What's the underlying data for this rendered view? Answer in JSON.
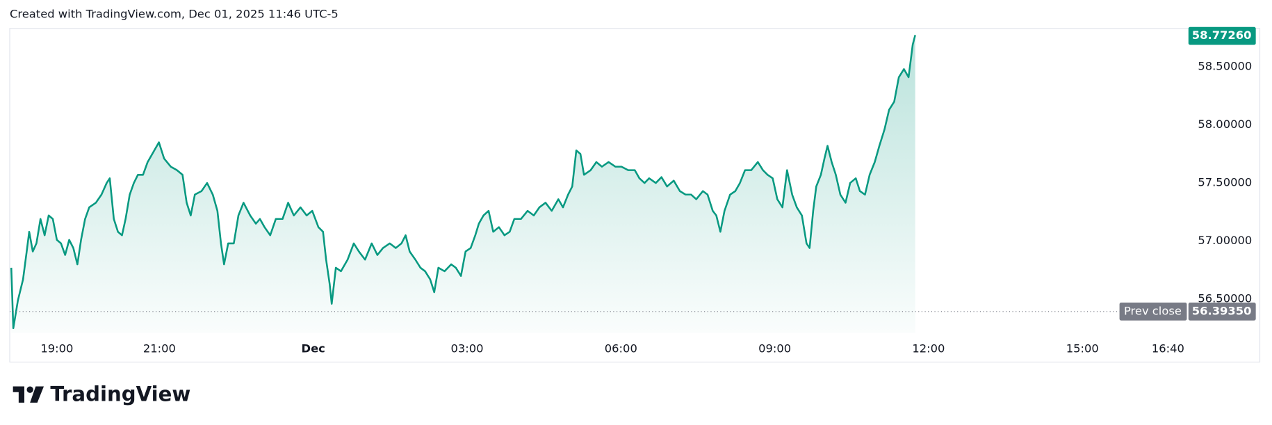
{
  "header": {
    "created": "Created with TradingView.com, Dec 01, 2025 11:46 UTC-5"
  },
  "footer": {
    "brand": "TradingView"
  },
  "chart_data": {
    "type": "area",
    "color": "#089981",
    "x": [
      0.11,
      0.15,
      0.24,
      0.34,
      0.41,
      0.46,
      0.53,
      0.6,
      0.68,
      0.76,
      0.84,
      0.92,
      1.0,
      1.08,
      1.16,
      1.24,
      1.32,
      1.4,
      1.47,
      1.55,
      1.63,
      1.76,
      1.87,
      1.97,
      2.03,
      2.11,
      2.19,
      2.27,
      2.34,
      2.42,
      2.5,
      2.58,
      2.68,
      2.77,
      2.9,
      2.99,
      3.09,
      3.22,
      3.34,
      3.45,
      3.53,
      3.61,
      3.69,
      3.82,
      3.93,
      4.04,
      4.13,
      4.2,
      4.26,
      4.34,
      4.45,
      4.54,
      4.64,
      4.77,
      4.88,
      4.96,
      5.05,
      5.16,
      5.27,
      5.4,
      5.51,
      5.62,
      5.75,
      5.87,
      5.98,
      6.1,
      6.19,
      6.25,
      6.32,
      6.36,
      6.44,
      6.54,
      6.67,
      6.79,
      6.89,
      7.01,
      7.14,
      7.25,
      7.36,
      7.49,
      7.61,
      7.72,
      7.8,
      7.88,
      7.99,
      8.09,
      8.18,
      8.28,
      8.36,
      8.44,
      8.56,
      8.69,
      8.78,
      8.88,
      8.97,
      9.07,
      9.16,
      9.23,
      9.32,
      9.42,
      9.51,
      9.62,
      9.73,
      9.83,
      9.92,
      10.05,
      10.18,
      10.3,
      10.41,
      10.53,
      10.65,
      10.78,
      10.87,
      10.97,
      11.05,
      11.13,
      11.21,
      11.28,
      11.41,
      11.52,
      11.63,
      11.76,
      11.89,
      12.01,
      12.14,
      12.27,
      12.36,
      12.46,
      12.55,
      12.68,
      12.79,
      12.9,
      13.03,
      13.15,
      13.26,
      13.37,
      13.47,
      13.6,
      13.69,
      13.79,
      13.86,
      13.94,
      14.02,
      14.13,
      14.23,
      14.32,
      14.42,
      14.54,
      14.67,
      14.77,
      14.86,
      14.96,
      15.05,
      15.15,
      15.24,
      15.34,
      15.43,
      15.53,
      15.62,
      15.68,
      15.75,
      15.81,
      15.9,
      15.97,
      16.03,
      16.11,
      16.19,
      16.28,
      16.38,
      16.47,
      16.58,
      16.66,
      16.76,
      16.85,
      16.95,
      17.04,
      17.14,
      17.23,
      17.33,
      17.42,
      17.52,
      17.61,
      17.69,
      17.74
    ],
    "values": [
      56.77,
      56.25,
      56.49,
      56.67,
      56.91,
      57.08,
      56.91,
      56.98,
      57.19,
      57.05,
      57.22,
      57.19,
      57.01,
      56.98,
      56.88,
      57.01,
      56.94,
      56.8,
      57.01,
      57.19,
      57.29,
      57.33,
      57.4,
      57.5,
      57.54,
      57.19,
      57.08,
      57.05,
      57.19,
      57.4,
      57.5,
      57.57,
      57.57,
      57.68,
      57.78,
      57.85,
      57.71,
      57.64,
      57.61,
      57.57,
      57.33,
      57.22,
      57.4,
      57.43,
      57.5,
      57.4,
      57.26,
      56.98,
      56.8,
      56.98,
      56.98,
      57.22,
      57.33,
      57.22,
      57.15,
      57.19,
      57.12,
      57.05,
      57.19,
      57.19,
      57.33,
      57.22,
      57.29,
      57.22,
      57.26,
      57.12,
      57.08,
      56.84,
      56.63,
      56.46,
      56.77,
      56.74,
      56.84,
      56.98,
      56.91,
      56.84,
      56.98,
      56.88,
      56.94,
      56.98,
      56.94,
      56.98,
      57.05,
      56.91,
      56.84,
      56.77,
      56.74,
      56.67,
      56.56,
      56.77,
      56.74,
      56.8,
      56.77,
      56.7,
      56.91,
      56.94,
      57.05,
      57.15,
      57.22,
      57.26,
      57.08,
      57.12,
      57.05,
      57.08,
      57.19,
      57.19,
      57.26,
      57.22,
      57.29,
      57.33,
      57.26,
      57.36,
      57.29,
      57.4,
      57.47,
      57.78,
      57.75,
      57.57,
      57.61,
      57.68,
      57.64,
      57.68,
      57.64,
      57.64,
      57.61,
      57.61,
      57.54,
      57.5,
      57.54,
      57.5,
      57.55,
      57.47,
      57.52,
      57.43,
      57.4,
      57.4,
      57.36,
      57.43,
      57.4,
      57.26,
      57.22,
      57.08,
      57.26,
      57.4,
      57.43,
      57.5,
      57.61,
      57.61,
      57.68,
      57.61,
      57.57,
      57.54,
      57.36,
      57.29,
      57.61,
      57.4,
      57.29,
      57.22,
      56.98,
      56.94,
      57.26,
      57.47,
      57.57,
      57.71,
      57.82,
      57.68,
      57.57,
      57.4,
      57.33,
      57.5,
      57.54,
      57.43,
      57.4,
      57.57,
      57.68,
      57.82,
      57.96,
      58.13,
      58.2,
      58.41,
      58.48,
      58.41,
      58.69,
      58.7726
    ],
    "last_price": {
      "value": 58.7726,
      "label": "58.77260"
    },
    "prev_close": {
      "name": "Prev close",
      "value": 56.3935,
      "label": "56.39350"
    },
    "xlim": [
      0.08,
      22.91
    ],
    "ylim": [
      56.21,
      58.83
    ],
    "xticks": [
      {
        "value": 1,
        "label": "19:00"
      },
      {
        "value": 3,
        "label": "21:00"
      },
      {
        "value": 6,
        "label": "Dec"
      },
      {
        "value": 9,
        "label": "03:00"
      },
      {
        "value": 12,
        "label": "06:00"
      },
      {
        "value": 15,
        "label": "09:00"
      },
      {
        "value": 18,
        "label": "12:00"
      },
      {
        "value": 21,
        "label": "15:00"
      },
      {
        "value": 22.67,
        "label": "16:40"
      }
    ],
    "yticks": [
      {
        "value": 56.5,
        "label": "56.50000"
      },
      {
        "value": 57,
        "label": "57.00000"
      },
      {
        "value": 57.5,
        "label": "57.50000"
      },
      {
        "value": 58,
        "label": "58.00000"
      },
      {
        "value": 58.5,
        "label": "58.50000"
      }
    ],
    "grid": false
  }
}
